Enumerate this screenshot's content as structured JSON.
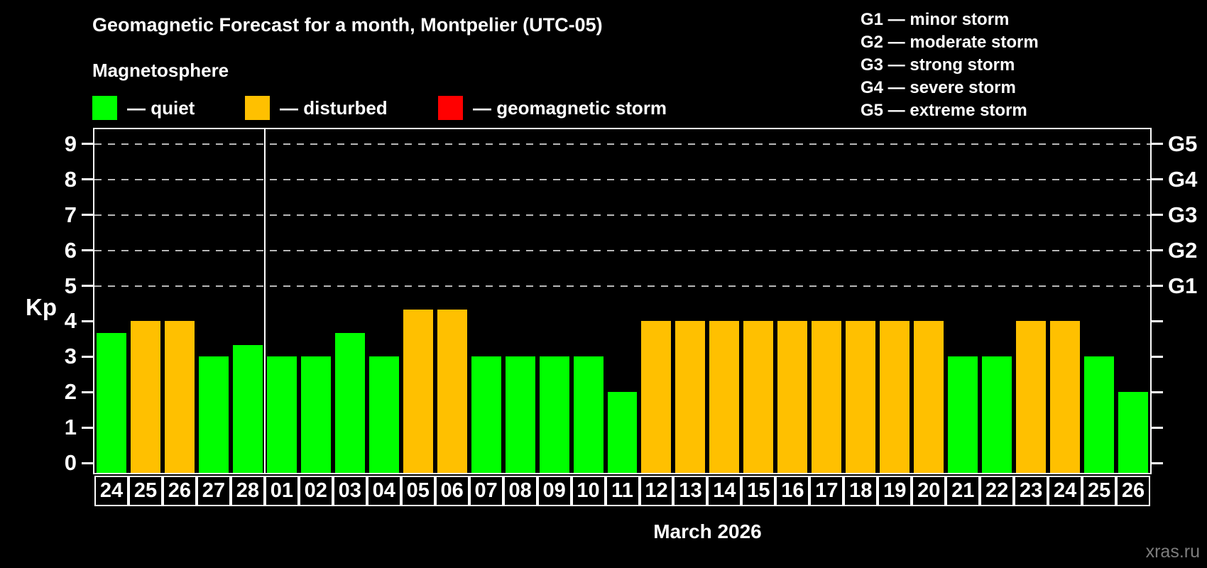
{
  "title": "Geomagnetic Forecast for a month, Montpelier (UTC-05)",
  "subtitle": "Magnetosphere",
  "legend": {
    "items": [
      {
        "key": "quiet",
        "label": "— quiet",
        "color": "#00ff00",
        "x": 130
      },
      {
        "key": "disturbed",
        "label": "— disturbed",
        "color": "#ffc000",
        "x": 345
      },
      {
        "key": "storm",
        "label": "— geomagnetic storm",
        "color": "#ff0000",
        "x": 617
      }
    ]
  },
  "g_scale_legend": [
    "G1 — minor storm",
    "G2 — moderate storm",
    "G3 — strong storm",
    "G4 — severe storm",
    "G5 — extreme storm"
  ],
  "watermark": "xras.ru",
  "chart_data": {
    "type": "bar",
    "title": "Geomagnetic Forecast for a month, Montpelier (UTC-05)",
    "xlabel": "March 2026",
    "ylabel": "Kp",
    "ylim": [
      -0.32,
      9.46
    ],
    "y_ticks": [
      0,
      1,
      2,
      3,
      4,
      5,
      6,
      7,
      8,
      9
    ],
    "gridlines_at": [
      5,
      6,
      7,
      8,
      9
    ],
    "right_axis_labels": [
      {
        "value": 5,
        "label": "G1"
      },
      {
        "value": 6,
        "label": "G2"
      },
      {
        "value": 7,
        "label": "G3"
      },
      {
        "value": 8,
        "label": "G4"
      },
      {
        "value": 9,
        "label": "G5"
      }
    ],
    "legend_position": "top-left",
    "grid": "dashed horizontal at storm levels only",
    "month_boundary_after_index": 4,
    "categories": [
      "24",
      "25",
      "26",
      "27",
      "28",
      "01",
      "02",
      "03",
      "04",
      "05",
      "06",
      "07",
      "08",
      "09",
      "10",
      "11",
      "12",
      "13",
      "14",
      "15",
      "16",
      "17",
      "18",
      "19",
      "20",
      "21",
      "22",
      "23",
      "24",
      "25",
      "26"
    ],
    "values": [
      3.67,
      4,
      4,
      3,
      3.33,
      3,
      3,
      3.67,
      3,
      4.33,
      4.33,
      3,
      3,
      3,
      3,
      2,
      4,
      4,
      4,
      4,
      4,
      4,
      4,
      4,
      4,
      3,
      3,
      4,
      4,
      3,
      2
    ],
    "statuses": [
      "quiet",
      "disturbed",
      "disturbed",
      "quiet",
      "quiet",
      "quiet",
      "quiet",
      "quiet",
      "quiet",
      "disturbed",
      "disturbed",
      "quiet",
      "quiet",
      "quiet",
      "quiet",
      "quiet",
      "disturbed",
      "disturbed",
      "disturbed",
      "disturbed",
      "disturbed",
      "disturbed",
      "disturbed",
      "disturbed",
      "disturbed",
      "quiet",
      "quiet",
      "disturbed",
      "disturbed",
      "quiet",
      "quiet"
    ]
  }
}
